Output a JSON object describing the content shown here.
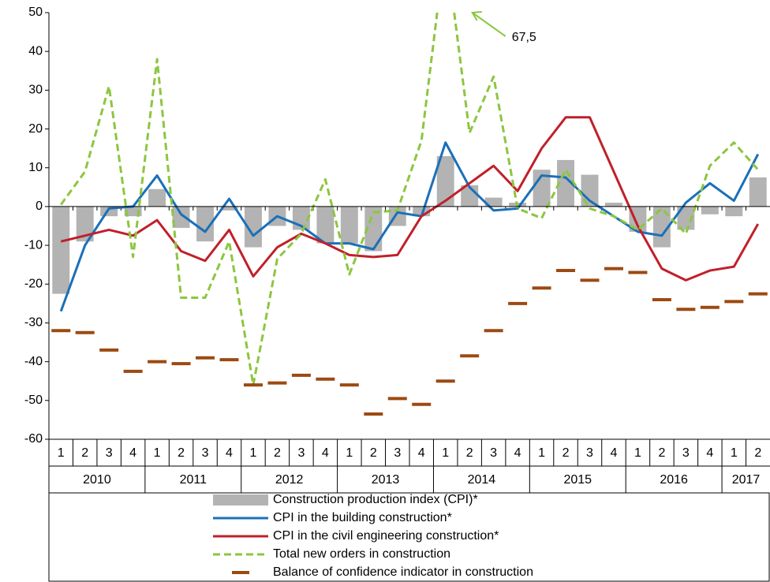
{
  "chart_data": {
    "type": "combo",
    "categories": [
      "1",
      "2",
      "3",
      "4",
      "1",
      "2",
      "3",
      "4",
      "1",
      "2",
      "3",
      "4",
      "1",
      "2",
      "3",
      "4",
      "1",
      "2",
      "3",
      "4",
      "1",
      "2",
      "3",
      "4",
      "1",
      "2",
      "3",
      "4",
      "1",
      "2"
    ],
    "years": [
      "2010",
      "2011",
      "2012",
      "2013",
      "2014",
      "2015",
      "2016",
      "2017"
    ],
    "ylim": [
      -60,
      50
    ],
    "yticks": [
      50,
      40,
      30,
      20,
      10,
      0,
      -10,
      -20,
      -30,
      -40,
      -50,
      -60
    ],
    "series": [
      {
        "name": "Construction production index (CPI)*",
        "kind": "bar",
        "color": "#b3b3b3",
        "values": [
          -22.5,
          -9,
          -2.5,
          -2.5,
          4.5,
          -5.5,
          -9,
          -1,
          -10.5,
          -5,
          -6,
          -9.5,
          -9.5,
          -11.5,
          -5,
          -2.5,
          13,
          5.5,
          2.3,
          1,
          9.5,
          12,
          8.2,
          1,
          -6.5,
          -10.5,
          -6,
          -2,
          -2.5,
          7.5
        ]
      },
      {
        "name": "CPI in the building construction*",
        "kind": "line",
        "color": "#1a70b8",
        "values": [
          -27,
          -10,
          -0.5,
          0,
          8,
          -2,
          -6.5,
          2,
          -7.5,
          -2.5,
          -5,
          -9.5,
          -9.5,
          -11,
          -1.5,
          -2.5,
          16.5,
          5,
          -1,
          -0.5,
          8,
          7.5,
          1.5,
          -2.5,
          -6.5,
          -7.5,
          1,
          6,
          1.5,
          13.5
        ]
      },
      {
        "name": "CPI in the civil engineering construction*",
        "kind": "line",
        "color": "#c0202a",
        "values": [
          -9,
          -7.5,
          -6,
          -7.5,
          -3.5,
          -11.5,
          -14,
          -6,
          -18,
          -10.5,
          -7,
          -9.5,
          -12.5,
          -13,
          -12.5,
          -2.5,
          1.5,
          6,
          10.5,
          4,
          15,
          23,
          23,
          9,
          -5,
          -16,
          -19,
          -16.5,
          -15.5,
          -4.5
        ]
      },
      {
        "name": "Total new orders in construction",
        "kind": "dashed",
        "color": "#8cc63f",
        "values": [
          0.5,
          9,
          31,
          -13,
          38,
          -23.5,
          -23.5,
          -9,
          -46,
          -13.5,
          -7,
          7,
          -17.5,
          -1.5,
          -1,
          17,
          67.5,
          19,
          33.5,
          -0.5,
          -3,
          9.5,
          -0.5,
          -2.5,
          -6,
          -0.5,
          -7,
          10.5,
          16.5,
          9.5
        ],
        "value_labels": [
          null,
          null,
          null,
          null,
          null,
          null,
          null,
          null,
          null,
          null,
          null,
          null,
          null,
          null,
          null,
          null,
          "67,5",
          null,
          null,
          null,
          null,
          null,
          null,
          null,
          null,
          null,
          null,
          null,
          null,
          null
        ]
      },
      {
        "name": "Balance of confidence indicator in construction",
        "kind": "marker",
        "color": "#9c4a12",
        "values": [
          -32,
          -32.5,
          -37,
          -42.5,
          -40,
          -40.5,
          -39,
          -39.5,
          -46,
          -45.5,
          -43.5,
          -44.5,
          -46,
          -53.5,
          -49.5,
          -51,
          -45,
          -38.5,
          -32,
          -25,
          -21,
          -16.5,
          -19,
          -16,
          -17,
          -24,
          -26.5,
          -26,
          -24.5,
          -22.5
        ]
      }
    ]
  }
}
